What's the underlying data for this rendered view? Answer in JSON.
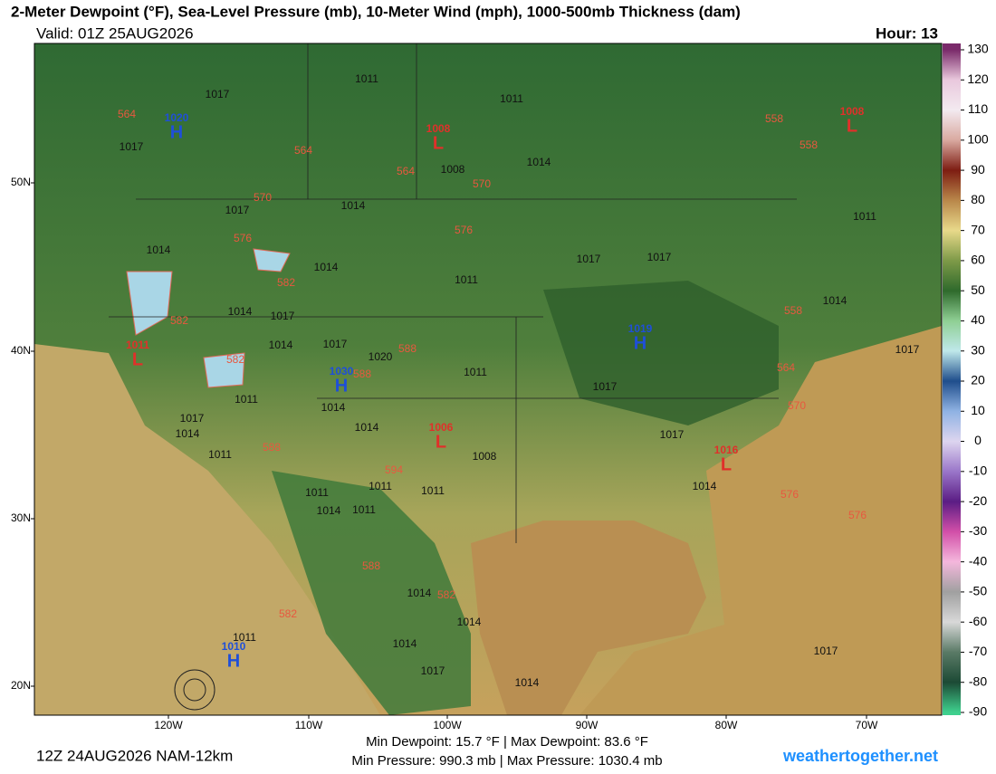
{
  "header": {
    "title": "2-Meter Dewpoint (°F), Sea-Level Pressure (mb), 10-Meter Wind (mph), 1000-500mb Thickness (dam)",
    "valid": "Valid: 01Z 25AUG2026",
    "hour": "Hour: 13"
  },
  "colorbar": {
    "ticks": [
      130,
      120,
      110,
      100,
      90,
      80,
      70,
      60,
      50,
      40,
      30,
      20,
      10,
      0,
      -10,
      -20,
      -30,
      -40,
      -50,
      -60,
      -70,
      -80,
      -90
    ],
    "colors": [
      "#7a2a6a",
      "#e9c8dd",
      "#f3eaf0",
      "#d9a9a0",
      "#7d1d12",
      "#b9874a",
      "#e8d98a",
      "#7e9a48",
      "#2f6a2c",
      "#8fcf94",
      "#bfe8ea",
      "#1f4e8c",
      "#8fb2e3",
      "#ddd5ef",
      "#9a76c9",
      "#5b1d84",
      "#d24fa8",
      "#f4b7dc",
      "#a0a0a0",
      "#d8d8d8",
      "#5a7a66",
      "#1c4a35",
      "#3fd08e"
    ]
  },
  "axes": {
    "lat_labels": [
      "50N",
      "40N",
      "30N",
      "20N"
    ],
    "lon_labels": [
      "120W",
      "110W",
      "100W",
      "90W",
      "80W",
      "70W"
    ]
  },
  "pressure_centers": [
    {
      "letter": "H",
      "value": 1020
    },
    {
      "letter": "L",
      "value": 1008
    },
    {
      "letter": "L",
      "value": 1008
    },
    {
      "letter": "L",
      "value": 1011
    },
    {
      "letter": "H",
      "value": 1019
    },
    {
      "letter": "H",
      "value": 1030
    },
    {
      "letter": "L",
      "value": 1006
    },
    {
      "letter": "L",
      "value": 1016
    },
    {
      "letter": "H",
      "value": 1010
    }
  ],
  "isobar_labels": [
    1017,
    1011,
    1011,
    1017,
    1014,
    1008,
    1017,
    1014,
    1014,
    1014,
    1011,
    1017,
    1017,
    1014,
    1014,
    1017,
    1011,
    1014,
    1017,
    1020,
    1011,
    1017,
    1011,
    1017,
    1014,
    1014,
    1014,
    1017,
    1008,
    1011,
    1011,
    1014,
    1011,
    1011,
    1011,
    1014,
    1017,
    1014,
    1014,
    1011,
    1014,
    1017,
    1014,
    1017
  ],
  "thickness_labels": [
    564,
    564,
    564,
    570,
    570,
    576,
    576,
    582,
    582,
    588,
    588,
    582,
    588,
    594,
    588,
    582,
    582,
    558,
    558,
    558,
    564,
    570,
    576,
    576
  ],
  "footer": {
    "run": "12Z 24AUG2026 NAM-12km",
    "dewpoint_range": "Min Dewpoint:  15.7 °F | Max Dewpoint:  83.6 °F",
    "pressure_range": "Min Pressure: 990.3 mb | Max Pressure: 1030.4 mb",
    "site": "weathertogether.net"
  }
}
